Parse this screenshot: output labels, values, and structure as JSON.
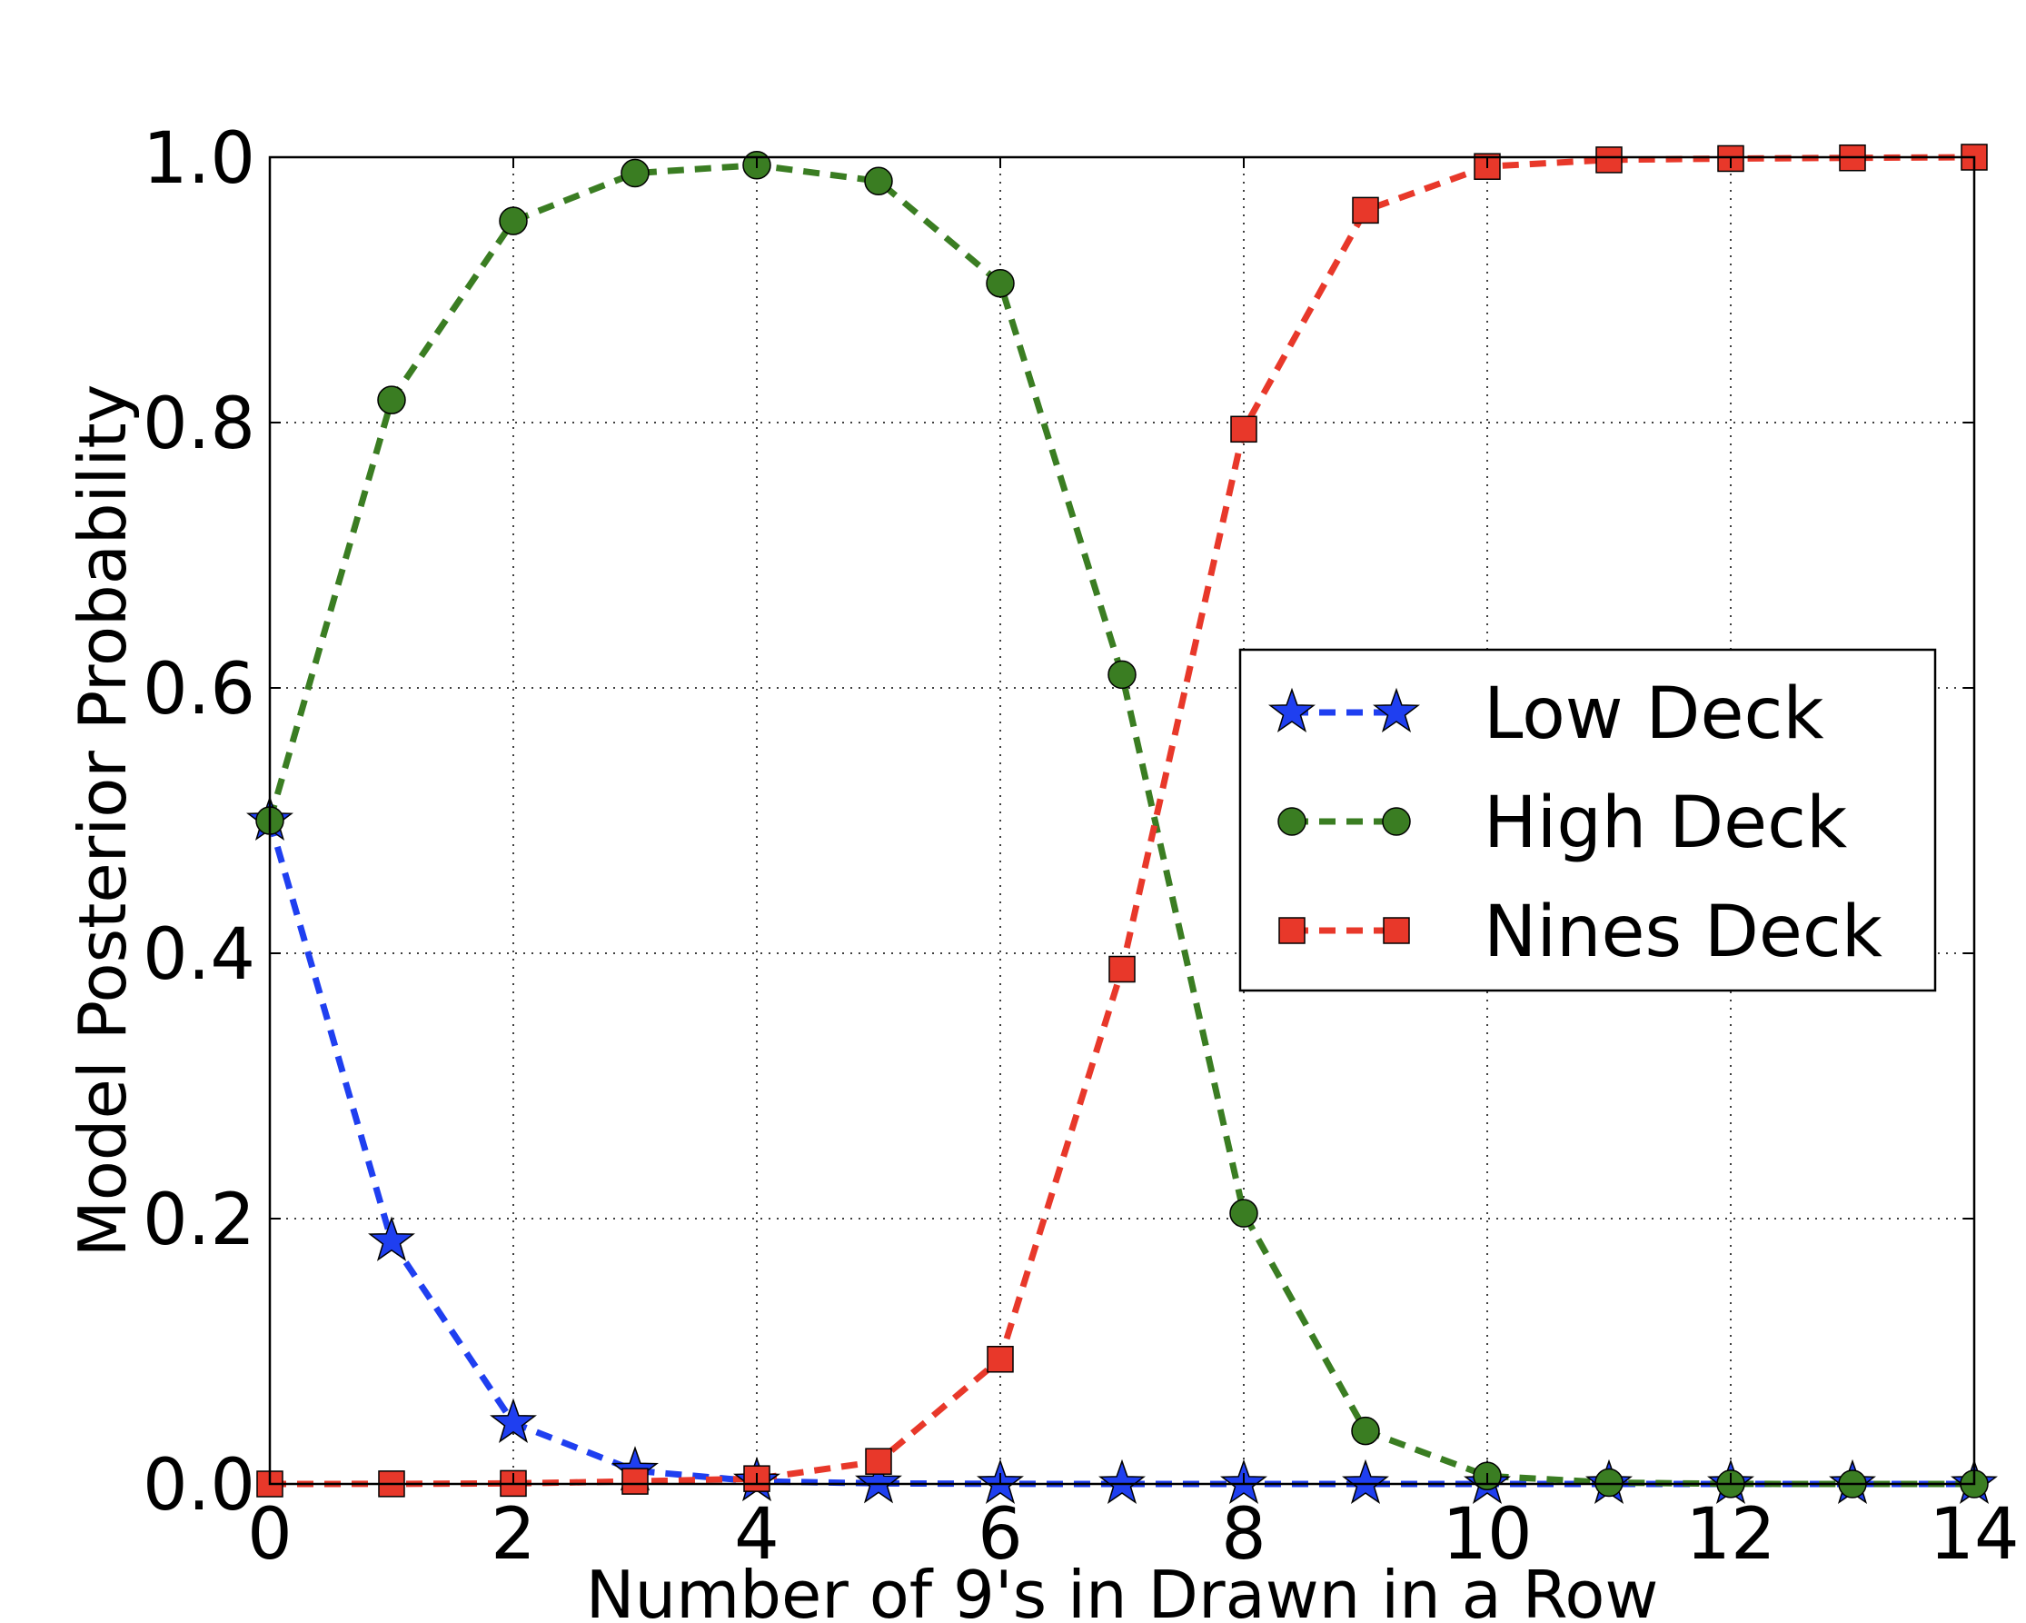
{
  "chart_data": {
    "type": "line",
    "title": "",
    "xlabel": "Number of 9's in Drawn in a Row",
    "ylabel": "Model Posterior Probability",
    "xlim": [
      0,
      14
    ],
    "ylim": [
      0.0,
      1.0
    ],
    "xticks": [
      0,
      2,
      4,
      6,
      8,
      10,
      12,
      14
    ],
    "xtick_labels": [
      "0",
      "2",
      "4",
      "6",
      "8",
      "10",
      "12",
      "14"
    ],
    "yticks": [
      0.0,
      0.2,
      0.4,
      0.6,
      0.8,
      1.0
    ],
    "ytick_labels": [
      "0.0",
      "0.2",
      "0.4",
      "0.6",
      "0.8",
      "1.0"
    ],
    "grid": true,
    "legend_position": "center-right",
    "x": [
      0,
      1,
      2,
      3,
      4,
      5,
      6,
      7,
      8,
      9,
      10,
      11,
      12,
      13,
      14
    ],
    "series": [
      {
        "name": "Low Deck",
        "color": "#1f3ff0",
        "marker": "star",
        "values": [
          0.5,
          0.183,
          0.046,
          0.01,
          0.002,
          0.0005,
          0.0001,
          0.0,
          0.0,
          0.0,
          0.0,
          0.0,
          0.0,
          0.0,
          0.0
        ]
      },
      {
        "name": "High Deck",
        "color": "#3a7d22",
        "marker": "circle",
        "values": [
          0.5,
          0.817,
          0.952,
          0.988,
          0.994,
          0.982,
          0.905,
          0.61,
          0.204,
          0.04,
          0.006,
          0.001,
          0.0001,
          0.0,
          0.0
        ]
      },
      {
        "name": "Nines Deck",
        "color": "#e8382a",
        "marker": "square",
        "values": [
          0.0,
          0.0001,
          0.0004,
          0.002,
          0.004,
          0.017,
          0.094,
          0.388,
          0.795,
          0.96,
          0.993,
          0.998,
          0.999,
          0.9995,
          1.0
        ]
      }
    ]
  }
}
